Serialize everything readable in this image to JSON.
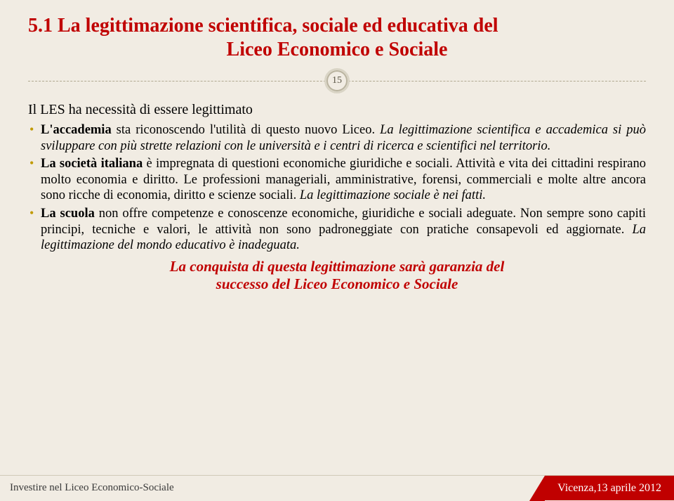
{
  "title_line1": "5.1  La legittimazione scientifica, sociale ed educativa del",
  "title_line2": "Liceo Economico e Sociale",
  "page_number": "15",
  "intro": "Il LES ha necessità di essere legittimato",
  "bullets": [
    {
      "pre_b": "L'accademia",
      "mid": " sta riconoscendo l'utilità di questo nuovo Liceo. ",
      "ital": "La legittimazione scientifica e accademica si può sviluppare con più strette relazioni con le università e i centri di ricerca e scientifici nel territorio."
    },
    {
      "pre_b": "La società italiana",
      "mid": " è impregnata di questioni economiche giuridiche e sociali. Attività e vita dei cittadini respirano molto economia e diritto. Le professioni manageriali, amministrative, forensi, commerciali e molte altre ancora sono ricche di economia, diritto e scienze sociali.  ",
      "ital": "La legittimazione sociale è nei fatti."
    },
    {
      "pre_b": "La scuola",
      "mid": " non offre competenze e conoscenze economiche, giuridiche e sociali adeguate. Non sempre sono capiti principi, tecniche e valori, le attività non sono padroneggiate con pratiche consapevoli ed aggiornate. ",
      "ital": "La legittimazione del mondo educativo è inadeguata."
    }
  ],
  "closing_line1": "La conquista di questa legittimazione sarà  garanzia del",
  "closing_line2": "successo del Liceo Economico e Sociale",
  "footer_left": "Investire nel Liceo Economico-Sociale",
  "footer_right": "Vicenza,13 aprile 2012",
  "colors": {
    "accent": "#c00000",
    "bg": "#f1ece3",
    "bullet": "#c19a00"
  }
}
